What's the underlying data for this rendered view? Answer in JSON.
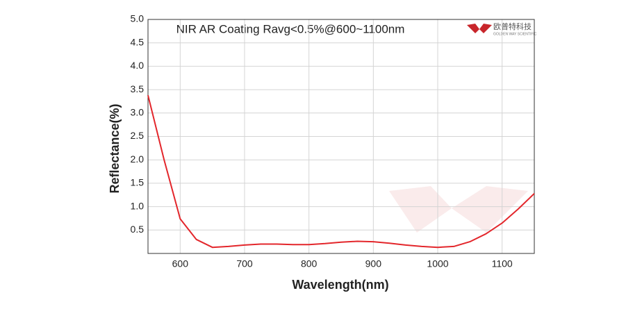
{
  "chart_data": {
    "type": "line",
    "title": "NIR AR Coating Ravg<0.5%@600~1100nm",
    "x_label": "Wavelength(nm)",
    "y_label": "Reflectance(%)",
    "logo": {
      "name": "欧普特科技",
      "subtitle": "GOLDEN WAY SCIENTIFIC"
    },
    "x": [
      550,
      575,
      600,
      625,
      650,
      675,
      700,
      725,
      750,
      775,
      800,
      825,
      850,
      875,
      900,
      925,
      950,
      975,
      1000,
      1025,
      1050,
      1075,
      1100,
      1125,
      1150
    ],
    "series": [
      {
        "name": "Reflectance",
        "color": "#e3262b",
        "values": [
          3.38,
          2.0,
          0.74,
          0.3,
          0.13,
          0.15,
          0.18,
          0.2,
          0.2,
          0.19,
          0.19,
          0.21,
          0.24,
          0.26,
          0.25,
          0.22,
          0.18,
          0.15,
          0.13,
          0.15,
          0.25,
          0.42,
          0.65,
          0.95,
          1.28
        ]
      }
    ],
    "xlim": [
      550,
      1150
    ],
    "xticks": [
      600,
      700,
      800,
      900,
      1000,
      1100
    ],
    "ylim": [
      0,
      5
    ],
    "yticks": [
      0.5,
      {
        "value": 1,
        "label": "1.0"
      },
      1.5,
      {
        "value": 2,
        "label": "2.0"
      },
      2.5,
      {
        "value": 3,
        "label": "3.0"
      },
      3.5,
      {
        "value": 4,
        "label": "4.0"
      },
      4.5,
      {
        "value": 5,
        "label": "5.0"
      }
    ],
    "grid": true
  }
}
